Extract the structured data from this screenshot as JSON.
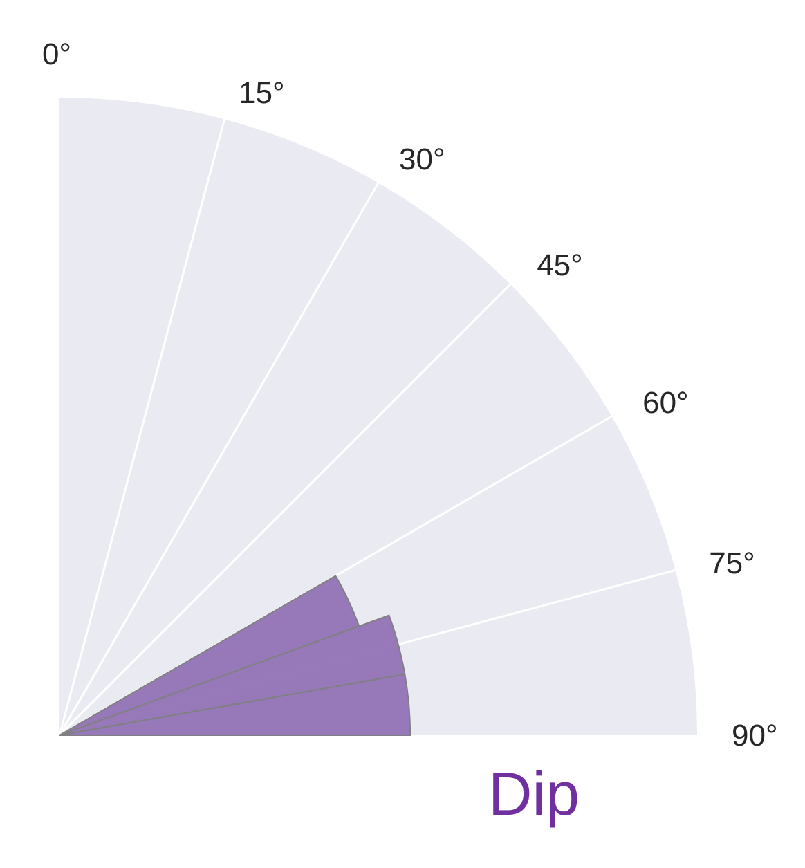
{
  "chart_data": {
    "type": "polar-bar",
    "title": "Dip",
    "title_color": "#7030a0",
    "theta_range_deg": [
      0,
      90
    ],
    "theta_zero": "north",
    "theta_direction": "clockwise",
    "theta_ticks": [
      "0°",
      "15°",
      "30°",
      "45°",
      "60°",
      "75°",
      "90°"
    ],
    "theta_tick_values": [
      0,
      15,
      30,
      45,
      60,
      75,
      90
    ],
    "radial_labels": "none",
    "r_max": 1.0,
    "grid": true,
    "colors": {
      "background": "#eaeaf2",
      "grid": "#ffffff",
      "bar_fill": "#8e6bb1",
      "bar_edge": "#808080"
    },
    "bars": [
      {
        "theta_start": 60,
        "theta_end": 70,
        "r": 0.5
      },
      {
        "theta_start": 70,
        "theta_end": 80,
        "r": 0.55
      },
      {
        "theta_start": 80,
        "theta_end": 90,
        "r": 0.55
      }
    ]
  }
}
